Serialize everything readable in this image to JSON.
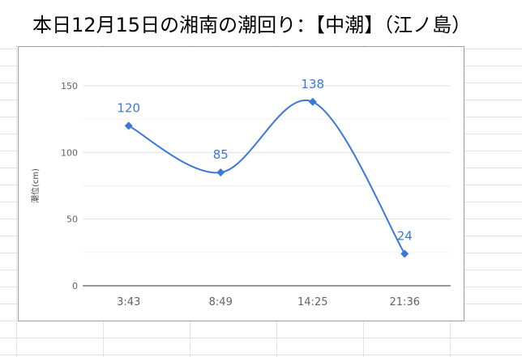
{
  "title": "本日12月15日の湘南の潮回り：【中潮】（江ノ島）",
  "chart_data": {
    "type": "line",
    "categories": [
      "3:43",
      "8:49",
      "14:25",
      "21:36"
    ],
    "series": [
      {
        "values": [
          120,
          85,
          138,
          24
        ]
      }
    ],
    "data_labels": [
      "120",
      "85",
      "138",
      "24"
    ],
    "yticks": [
      "0",
      "50",
      "100",
      "150"
    ],
    "ylabel": "潮位(cm)",
    "xlabel": "",
    "ylim": [
      0,
      150
    ],
    "grid": true,
    "smooth": true,
    "marker": "diamond",
    "colors": {
      "line": "#3c78d8",
      "label": "#3c78d8",
      "grid": "#e0e0e0",
      "axis": "#333333",
      "tick": "#5f6368"
    }
  }
}
